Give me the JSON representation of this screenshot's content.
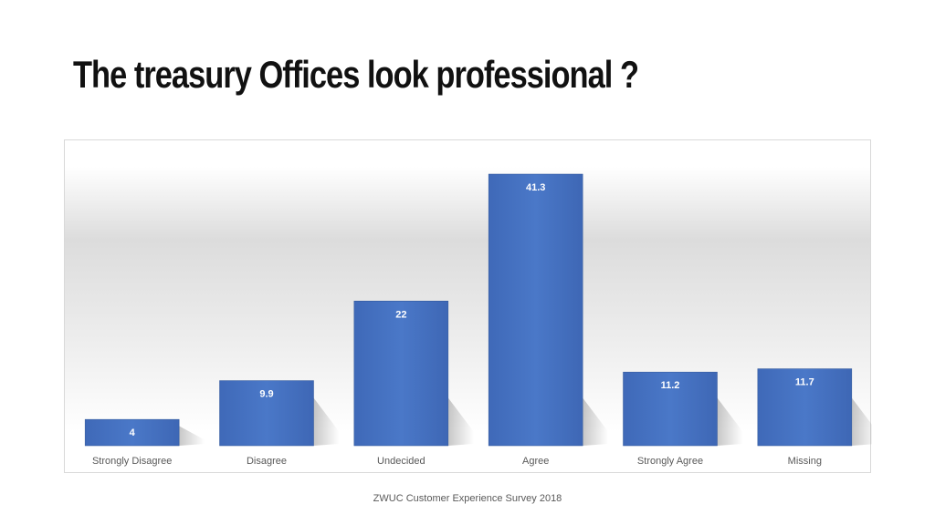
{
  "slide": {
    "title": "The treasury Offices look professional ?",
    "footer": "ZWUC Customer Experience Survey 2018"
  },
  "colors": {
    "bar": "#4472c4",
    "bar_dark": "#2f5597",
    "label": "#ffffff",
    "axis_text": "#595959"
  },
  "chart_data": {
    "type": "bar",
    "title": "",
    "xlabel": "",
    "ylabel": "",
    "categories": [
      "Strongly Disagree",
      "Disagree",
      "Undecided",
      "Agree",
      "Strongly Agree",
      "Missing"
    ],
    "values": [
      4,
      9.9,
      22,
      41.3,
      11.2,
      11.7
    ],
    "data_labels": [
      "4",
      "9.9",
      "22",
      "41.3",
      "11.2",
      "11.7"
    ],
    "ylim": [
      0,
      45
    ],
    "grid": false,
    "legend": "none"
  }
}
